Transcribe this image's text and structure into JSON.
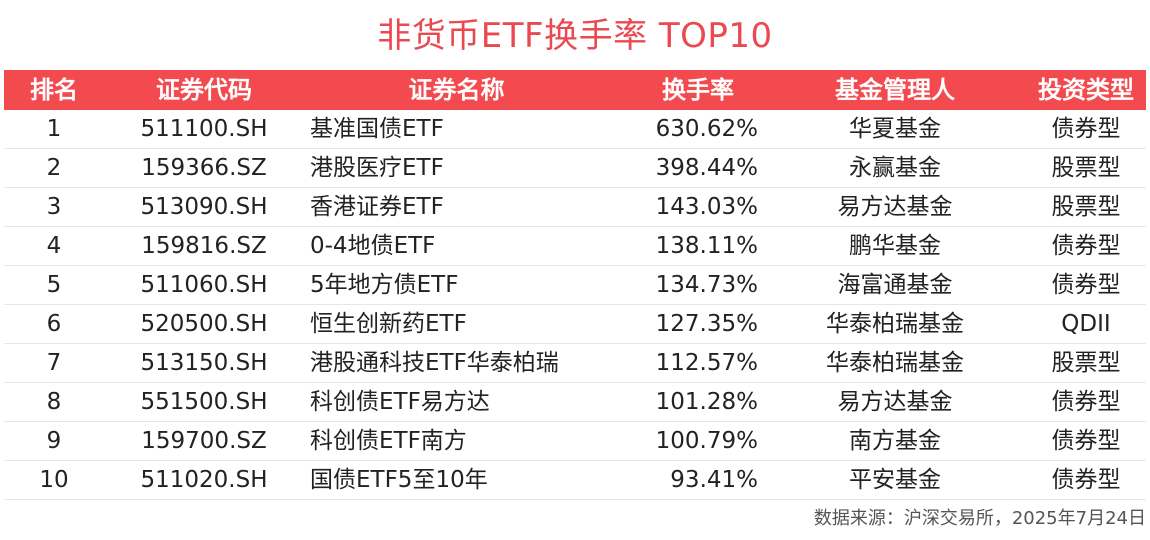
{
  "title": "非货币ETF换手率 TOP10",
  "columns": [
    "排名",
    "证券代码",
    "证券名称",
    "换手率",
    "基金管理人",
    "投资类型"
  ],
  "rows": [
    {
      "rank": "1",
      "code": "511100.SH",
      "name": "基准国债ETF",
      "turnover": "630.62%",
      "manager": "华夏基金",
      "type": "债券型"
    },
    {
      "rank": "2",
      "code": "159366.SZ",
      "name": "港股医疗ETF",
      "turnover": "398.44%",
      "manager": "永赢基金",
      "type": "股票型"
    },
    {
      "rank": "3",
      "code": "513090.SH",
      "name": "香港证券ETF",
      "turnover": "143.03%",
      "manager": "易方达基金",
      "type": "股票型"
    },
    {
      "rank": "4",
      "code": "159816.SZ",
      "name": "0-4地债ETF",
      "turnover": "138.11%",
      "manager": "鹏华基金",
      "type": "债券型"
    },
    {
      "rank": "5",
      "code": "511060.SH",
      "name": "5年地方债ETF",
      "turnover": "134.73%",
      "manager": "海富通基金",
      "type": "债券型"
    },
    {
      "rank": "6",
      "code": "520500.SH",
      "name": "恒生创新药ETF",
      "turnover": "127.35%",
      "manager": "华泰柏瑞基金",
      "type": "QDII"
    },
    {
      "rank": "7",
      "code": "513150.SH",
      "name": "港股通科技ETF华泰柏瑞",
      "turnover": "112.57%",
      "manager": "华泰柏瑞基金",
      "type": "股票型"
    },
    {
      "rank": "8",
      "code": "551500.SH",
      "name": "科创债ETF易方达",
      "turnover": "101.28%",
      "manager": "易方达基金",
      "type": "债券型"
    },
    {
      "rank": "9",
      "code": "159700.SZ",
      "name": "科创债ETF南方",
      "turnover": "100.79%",
      "manager": "南方基金",
      "type": "债券型"
    },
    {
      "rank": "10",
      "code": "511020.SH",
      "name": "国债ETF5至10年",
      "turnover": "93.41%",
      "manager": "平安基金",
      "type": "债券型"
    }
  ],
  "source": "数据来源：沪深交易所，2025年7月24日",
  "colors": {
    "accent": "#f24a4e",
    "title": "#ea4a4f"
  }
}
